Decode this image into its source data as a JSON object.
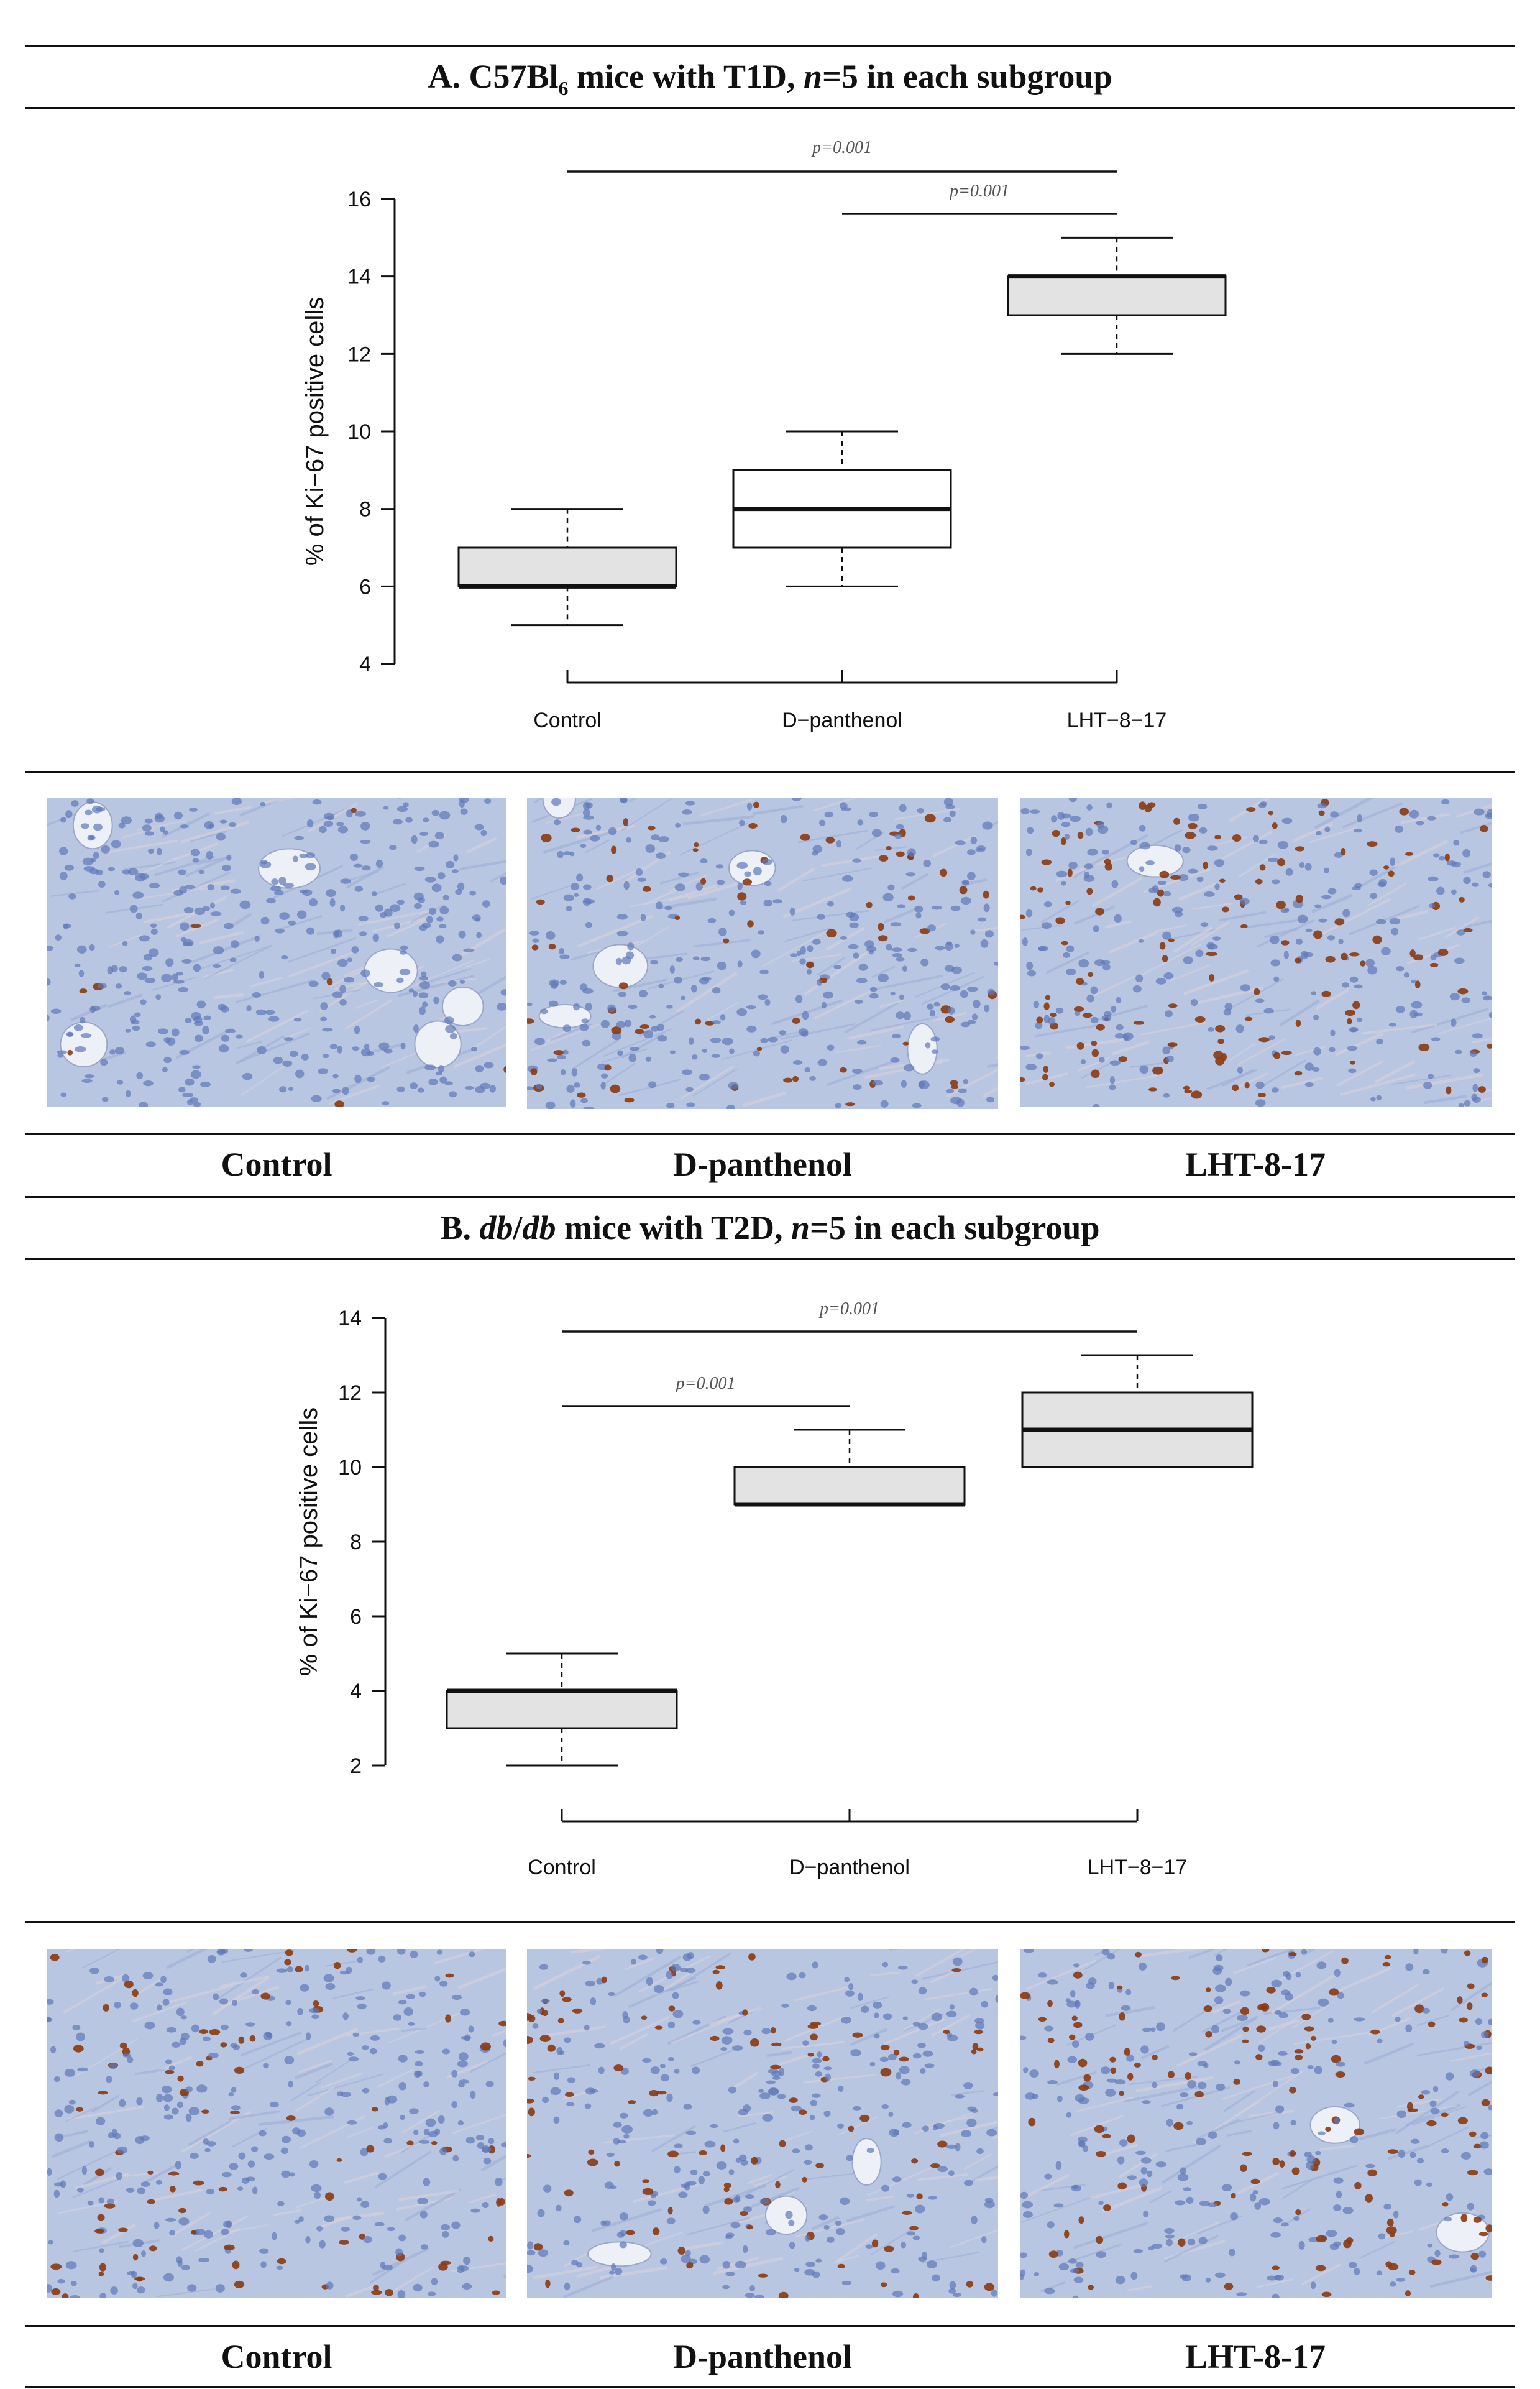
{
  "panel_a": {
    "title_prefix": "A. C57Bl",
    "title_sub": "6",
    "title_mid": " mice with T1D, ",
    "title_n": "n",
    "title_suffix": "=5 in each subgroup"
  },
  "panel_b": {
    "title_prefix": "B. ",
    "title_db1": "db",
    "title_slash": "/",
    "title_db2": "db",
    "title_mid": " mice with T2D, ",
    "title_n": "n",
    "title_suffix": "=5 in each subgroup"
  },
  "captions": {
    "a": [
      "Control",
      "D-panthenol",
      "LHT-8-17"
    ],
    "b": [
      "Control",
      "D-panthenol",
      "LHT-8-17"
    ]
  },
  "colors": {
    "box_fill_gray": "#e3e3e3",
    "box_fill_white": "#ffffff",
    "stroke": "#111111",
    "pvalue_text": "#555555",
    "tissue_background": "#b9c6e2",
    "nuclei_blue": "#5f78b8",
    "nuclei_brown": "#8a3a12"
  },
  "chart_data": [
    {
      "type": "boxplot",
      "title": "",
      "ylabel": "% of Ki−67 positive cells",
      "xlabel": "",
      "categories": [
        "Control",
        "D−panthenol",
        "LHT−8−17"
      ],
      "yticks": [
        4,
        6,
        8,
        10,
        12,
        14,
        16
      ],
      "ylim": [
        4,
        16
      ],
      "boxes": [
        {
          "min": 5,
          "q1": 6,
          "median": 6,
          "q3": 7,
          "max": 8,
          "fill": "gray"
        },
        {
          "min": 6,
          "q1": 7,
          "median": 8,
          "q3": 9,
          "max": 10,
          "fill": "white"
        },
        {
          "min": 12,
          "q1": 13,
          "median": 14,
          "q3": 14,
          "max": 15,
          "fill": "gray"
        }
      ],
      "significance": [
        {
          "from": "Control",
          "to": "LHT−8−17",
          "label": "p=0.001"
        },
        {
          "from": "D−panthenol",
          "to": "LHT−8−17",
          "label": "p=0.001"
        }
      ]
    },
    {
      "type": "boxplot",
      "title": "",
      "ylabel": "% of Ki−67 positive cells",
      "xlabel": "",
      "categories": [
        "Control",
        "D−panthenol",
        "LHT−8−17"
      ],
      "yticks": [
        2,
        4,
        6,
        8,
        10,
        12,
        14
      ],
      "ylim": [
        2,
        14
      ],
      "boxes": [
        {
          "min": 2,
          "q1": 3,
          "median": 4,
          "q3": 4,
          "max": 5,
          "fill": "gray"
        },
        {
          "min": 9,
          "q1": 9,
          "median": 9,
          "q3": 10,
          "max": 11,
          "fill": "gray"
        },
        {
          "min": 10,
          "q1": 10,
          "median": 11,
          "q3": 12,
          "max": 13,
          "fill": "gray"
        }
      ],
      "significance": [
        {
          "from": "Control",
          "to": "LHT−8−17",
          "label": "p=0.001"
        },
        {
          "from": "Control",
          "to": "D−panthenol",
          "label": "p=0.001"
        }
      ]
    }
  ],
  "micrographs": [
    {
      "id": "a-control",
      "brown_density": 0.03,
      "fat_cells": 6
    },
    {
      "id": "a-dpanthenol",
      "brown_density": 0.18,
      "fat_cells": 5
    },
    {
      "id": "a-lht",
      "brown_density": 0.35,
      "fat_cells": 1
    },
    {
      "id": "b-control",
      "brown_density": 0.25,
      "fat_cells": 0
    },
    {
      "id": "b-dpanthenol",
      "brown_density": 0.28,
      "fat_cells": 3
    },
    {
      "id": "b-lht",
      "brown_density": 0.4,
      "fat_cells": 2
    }
  ]
}
